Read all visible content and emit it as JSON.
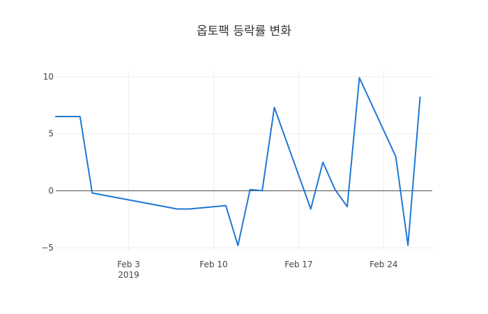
{
  "chart_data": {
    "type": "line",
    "title": "옵토팩 등락률 변화",
    "xlabel": "",
    "ylabel": "",
    "x_range": [
      "2019-01-28",
      "2019-02-28"
    ],
    "ylim": [
      -5.3,
      10.6
    ],
    "grid": true,
    "legend": "none",
    "x_ticks": [
      {
        "date": "2019-02-03",
        "label": "Feb 3",
        "sublabel": "2019"
      },
      {
        "date": "2019-02-10",
        "label": "Feb 10",
        "sublabel": ""
      },
      {
        "date": "2019-02-17",
        "label": "Feb 17",
        "sublabel": ""
      },
      {
        "date": "2019-02-24",
        "label": "Feb 24",
        "sublabel": ""
      }
    ],
    "y_ticks": [
      {
        "value": -5,
        "label": "−5"
      },
      {
        "value": 0,
        "label": "0"
      },
      {
        "value": 5,
        "label": "5"
      },
      {
        "value": 10,
        "label": "10"
      }
    ],
    "series": [
      {
        "color": "#1f77d4",
        "x": [
          "2019-01-28",
          "2019-01-30",
          "2019-01-31",
          "2019-02-07",
          "2019-02-08",
          "2019-02-11",
          "2019-02-12",
          "2019-02-13",
          "2019-02-14",
          "2019-02-15",
          "2019-02-18",
          "2019-02-19",
          "2019-02-20",
          "2019-02-21",
          "2019-02-22",
          "2019-02-25",
          "2019-02-26",
          "2019-02-27"
        ],
        "y": [
          6.5,
          6.5,
          -0.2,
          -1.6,
          -1.6,
          -1.3,
          -4.8,
          0.1,
          0.0,
          7.3,
          -1.6,
          2.5,
          0.1,
          -1.4,
          9.9,
          3.0,
          -4.8,
          8.2
        ]
      }
    ]
  }
}
